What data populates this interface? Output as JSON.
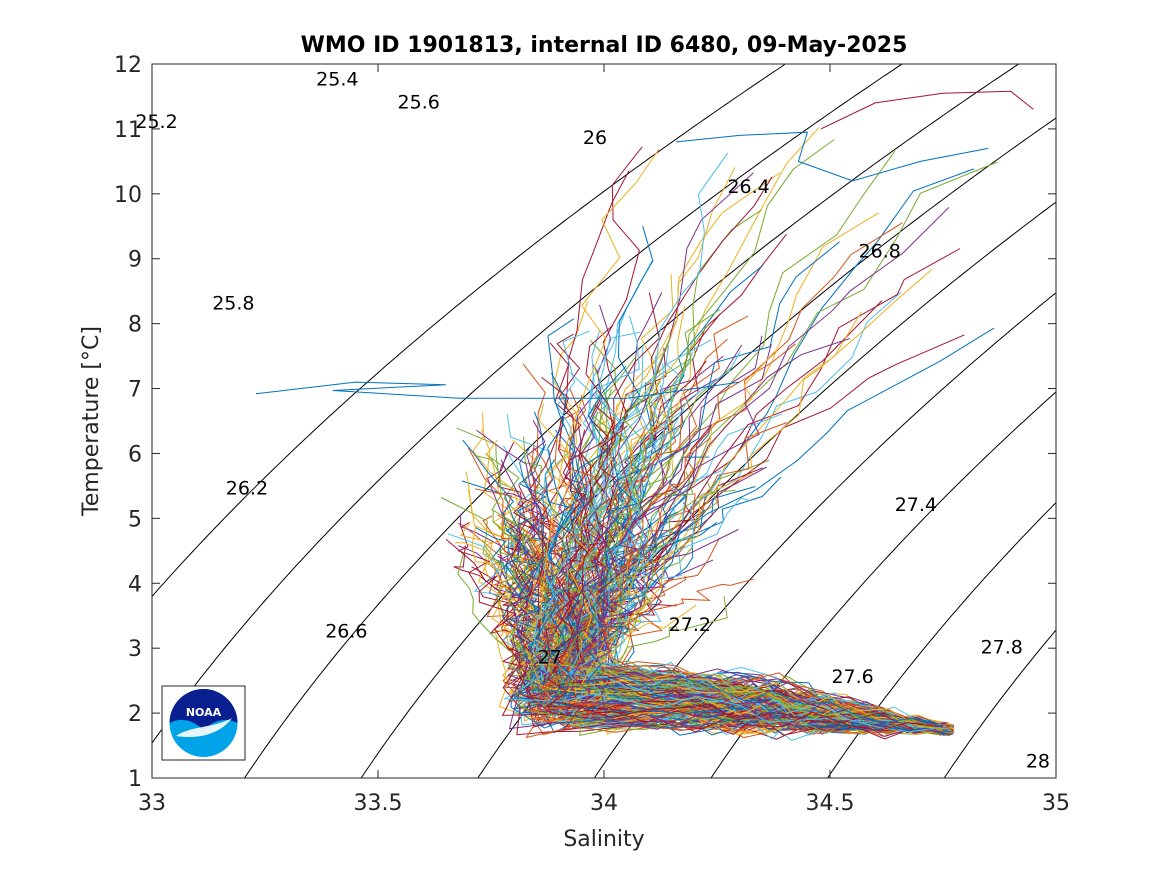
{
  "chart_data": {
    "type": "scatter",
    "title": "WMO ID 1901813, internal ID 6480, 09-May-2025",
    "xlabel": "Salinity",
    "ylabel": "Temperature [°C]",
    "xlim": [
      33,
      35
    ],
    "ylim": [
      1,
      12
    ],
    "x_ticks": [
      33,
      33.5,
      34,
      34.5,
      35
    ],
    "x_tick_labels": [
      "33",
      "33.5",
      "34",
      "34.5",
      "35"
    ],
    "y_ticks": [
      1,
      2,
      3,
      4,
      5,
      6,
      7,
      8,
      9,
      10,
      11,
      12
    ],
    "y_tick_labels": [
      "1",
      "2",
      "3",
      "4",
      "5",
      "6",
      "7",
      "8",
      "9",
      "10",
      "11",
      "12"
    ],
    "grid": false,
    "legend": "none",
    "density_contours": {
      "levels": [
        25.2,
        25.4,
        25.6,
        25.8,
        26,
        26.2,
        26.4,
        26.6,
        26.8,
        27,
        27.2,
        27.4,
        27.6,
        27.8,
        28
      ],
      "labels": [
        {
          "text": "25.2",
          "S": 33.01,
          "T": 11.1
        },
        {
          "text": "25.4",
          "S": 33.41,
          "T": 11.75
        },
        {
          "text": "25.6",
          "S": 33.59,
          "T": 11.4
        },
        {
          "text": "25.8",
          "S": 33.18,
          "T": 8.3
        },
        {
          "text": "26",
          "S": 33.98,
          "T": 10.85
        },
        {
          "text": "26.2",
          "S": 33.21,
          "T": 5.45
        },
        {
          "text": "26.4",
          "S": 34.32,
          "T": 10.1
        },
        {
          "text": "26.6",
          "S": 33.43,
          "T": 3.25
        },
        {
          "text": "26.8",
          "S": 34.61,
          "T": 9.1
        },
        {
          "text": "27",
          "S": 33.88,
          "T": 2.85
        },
        {
          "text": "27.2",
          "S": 34.19,
          "T": 3.35
        },
        {
          "text": "27.4",
          "S": 34.69,
          "T": 5.2
        },
        {
          "text": "27.6",
          "S": 34.55,
          "T": 2.55
        },
        {
          "text": "27.8",
          "S": 34.88,
          "T": 3.0
        },
        {
          "text": "28",
          "S": 34.96,
          "T": 1.25
        }
      ]
    },
    "profiles": {
      "count_shown": "many (approx. 300 profiles)",
      "colors": [
        "#0072BD",
        "#D95319",
        "#EDB120",
        "#7E2F8E",
        "#77AC30",
        "#4DBEEE",
        "#A2142F"
      ],
      "envelope": {
        "near_surface_warm_end": {
          "S_range": [
            33.2,
            34.9
          ],
          "T_range": [
            6,
            11.6
          ]
        },
        "fresh_limb": {
          "S_range": [
            33.6,
            33.85
          ],
          "T_range": [
            2.5,
            6.5
          ]
        },
        "deep_tail_end": {
          "S": 34.76,
          "T": 1.7
        },
        "min_temperature": 1.35
      },
      "notable_tracks": [
        {
          "color": "#0072BD",
          "points": [
            [
              33.23,
              6.92
            ],
            [
              33.45,
              7.1
            ],
            [
              33.65,
              7.06
            ],
            [
              33.4,
              6.97
            ],
            [
              33.68,
              6.85
            ],
            [
              34.05,
              6.85
            ],
            [
              34.3,
              7.1
            ]
          ]
        },
        {
          "color": "#A2142F",
          "points": [
            [
              34.48,
              11.0
            ],
            [
              34.6,
              11.4
            ],
            [
              34.75,
              11.55
            ],
            [
              34.9,
              11.58
            ],
            [
              34.95,
              11.3
            ]
          ]
        },
        {
          "color": "#0072BD",
          "points": [
            [
              34.16,
              10.8
            ],
            [
              34.3,
              10.9
            ],
            [
              34.45,
              10.95
            ],
            [
              34.43,
              10.5
            ],
            [
              34.55,
              10.2
            ],
            [
              34.7,
              10.5
            ],
            [
              34.85,
              10.7
            ]
          ]
        }
      ]
    }
  },
  "logo": {
    "text": "NOAA",
    "colors": {
      "top": "#0A1F8F",
      "bottom": "#00A3E8"
    }
  }
}
